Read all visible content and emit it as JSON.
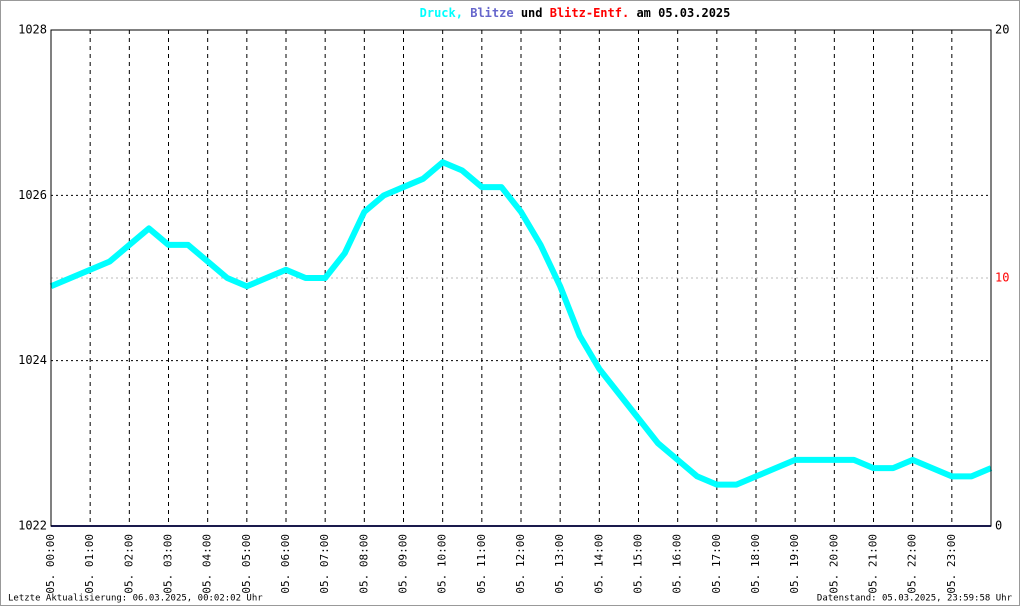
{
  "chart_data": {
    "type": "line",
    "title_parts": [
      {
        "text": "Druck,",
        "color": "#00ffff"
      },
      {
        "text": "Blitze",
        "color": "#6666cc"
      },
      {
        "text": "und",
        "color": "#000000"
      },
      {
        "text": "Blitz-Entf.",
        "color": "#ff0000"
      },
      {
        "text": "am 05.03.2025",
        "color": "#000000"
      }
    ],
    "footer_left": "Letzte Aktualisierung: 06.03.2025, 00:02:02 Uhr",
    "footer_right": "Datenstand: 05.03.2025, 23:59:58 Uhr",
    "xlim": [
      0,
      24
    ],
    "xticks": [
      {
        "value": 0,
        "label": "05. 00:00"
      },
      {
        "value": 1,
        "label": "05. 01:00"
      },
      {
        "value": 2,
        "label": "05. 02:00"
      },
      {
        "value": 3,
        "label": "05. 03:00"
      },
      {
        "value": 4,
        "label": "05. 04:00"
      },
      {
        "value": 5,
        "label": "05. 05:00"
      },
      {
        "value": 6,
        "label": "05. 06:00"
      },
      {
        "value": 7,
        "label": "05. 07:00"
      },
      {
        "value": 8,
        "label": "05. 08:00"
      },
      {
        "value": 9,
        "label": "05. 09:00"
      },
      {
        "value": 10,
        "label": "05. 10:00"
      },
      {
        "value": 11,
        "label": "05. 11:00"
      },
      {
        "value": 12,
        "label": "05. 12:00"
      },
      {
        "value": 13,
        "label": "05. 13:00"
      },
      {
        "value": 14,
        "label": "05. 14:00"
      },
      {
        "value": 15,
        "label": "05. 15:00"
      },
      {
        "value": 16,
        "label": "05. 16:00"
      },
      {
        "value": 17,
        "label": "05. 17:00"
      },
      {
        "value": 18,
        "label": "05. 18:00"
      },
      {
        "value": 19,
        "label": "05. 19:00"
      },
      {
        "value": 20,
        "label": "05. 20:00"
      },
      {
        "value": 21,
        "label": "05. 21:00"
      },
      {
        "value": 22,
        "label": "05. 22:00"
      },
      {
        "value": 23,
        "label": "05. 23:00"
      }
    ],
    "ylim": [
      1022,
      1028
    ],
    "yticks": [
      1022,
      1024,
      1026,
      1028
    ],
    "y2lim": [
      0,
      20
    ],
    "y2ticks": [
      0,
      10,
      20
    ],
    "grid": true,
    "series": [
      {
        "name": "Druck",
        "color": "#00ffff",
        "x": [
          0,
          0.5,
          1,
          1.5,
          2,
          2.5,
          3,
          3.5,
          4,
          4.5,
          5,
          5.5,
          6,
          6.5,
          7,
          7.5,
          8,
          8.5,
          9,
          9.5,
          10,
          10.5,
          11,
          11.5,
          12,
          12.5,
          13,
          13.5,
          14,
          14.5,
          15,
          15.5,
          16,
          16.5,
          17,
          17.5,
          18,
          18.5,
          19,
          19.5,
          20,
          20.5,
          21,
          21.5,
          22,
          22.5,
          23,
          23.5,
          24
        ],
        "values": [
          1024.9,
          1025.0,
          1025.1,
          1025.2,
          1025.4,
          1025.6,
          1025.4,
          1025.4,
          1025.2,
          1025.0,
          1024.9,
          1025.0,
          1025.1,
          1025.0,
          1025.0,
          1025.3,
          1025.8,
          1026.0,
          1026.1,
          1026.2,
          1026.4,
          1026.3,
          1026.1,
          1026.1,
          1025.8,
          1025.4,
          1024.9,
          1024.3,
          1023.9,
          1023.6,
          1023.3,
          1023.0,
          1022.8,
          1022.6,
          1022.5,
          1022.5,
          1022.6,
          1022.7,
          1022.8,
          1022.8,
          1022.8,
          1022.8,
          1022.7,
          1022.7,
          1022.8,
          1022.7,
          1022.6,
          1022.6,
          1022.7
        ]
      },
      {
        "name": "Blitze",
        "color": "#333399",
        "axis": "y2",
        "x": [
          0,
          24
        ],
        "values": [
          0,
          0
        ]
      }
    ]
  }
}
